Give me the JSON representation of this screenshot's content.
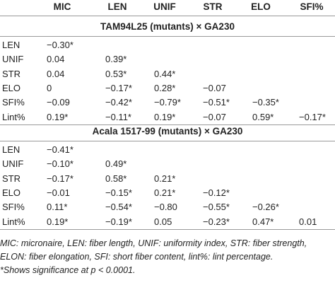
{
  "table": {
    "header": [
      "MIC",
      "LEN",
      "UNIF",
      "STR",
      "ELO",
      "SFI%"
    ],
    "sections": [
      {
        "title": "TAM94L25 (mutants) × GA230",
        "rows": [
          [
            "LEN",
            "−0.30*"
          ],
          [
            "UNIF",
            "0.04",
            "0.39*"
          ],
          [
            "STR",
            "0.04",
            "0.53*",
            "0.44*"
          ],
          [
            "ELO",
            "0",
            "−0.17*",
            "0.28*",
            "−0.07"
          ],
          [
            "SFI%",
            "−0.09",
            "−0.42*",
            "−0.79*",
            "−0.51*",
            "−0.35*"
          ],
          [
            "Lint%",
            "0.19*",
            "−0.11*",
            "0.19*",
            "−0.07",
            "0.59*",
            "−0.17*"
          ]
        ]
      },
      {
        "title": "Acala 1517-99 (mutants) × GA230",
        "rows": [
          [
            "LEN",
            "−0.41*"
          ],
          [
            "UNIF",
            "−0.10*",
            "0.49*"
          ],
          [
            "STR",
            "−0.17*",
            "0.58*",
            "0.21*"
          ],
          [
            "ELO",
            "−0.01",
            "−0.15*",
            "0.21*",
            "−0.12*"
          ],
          [
            "SFI%",
            "0.11*",
            "−0.54*",
            "−0.80",
            "−0.55*",
            "−0.26*"
          ],
          [
            "Lint%",
            "0.19*",
            "−0.19*",
            "0.05",
            "−0.23*",
            "0.47*",
            "0.01"
          ]
        ]
      }
    ],
    "notes": [
      "MIC: micronaire, LEN: fiber length, UNIF: uniformity index, STR: fiber strength, ELON: fiber elongation, SFI: short fiber content, lint%: lint percentage.",
      "*Shows significance at p < 0.0001."
    ]
  }
}
